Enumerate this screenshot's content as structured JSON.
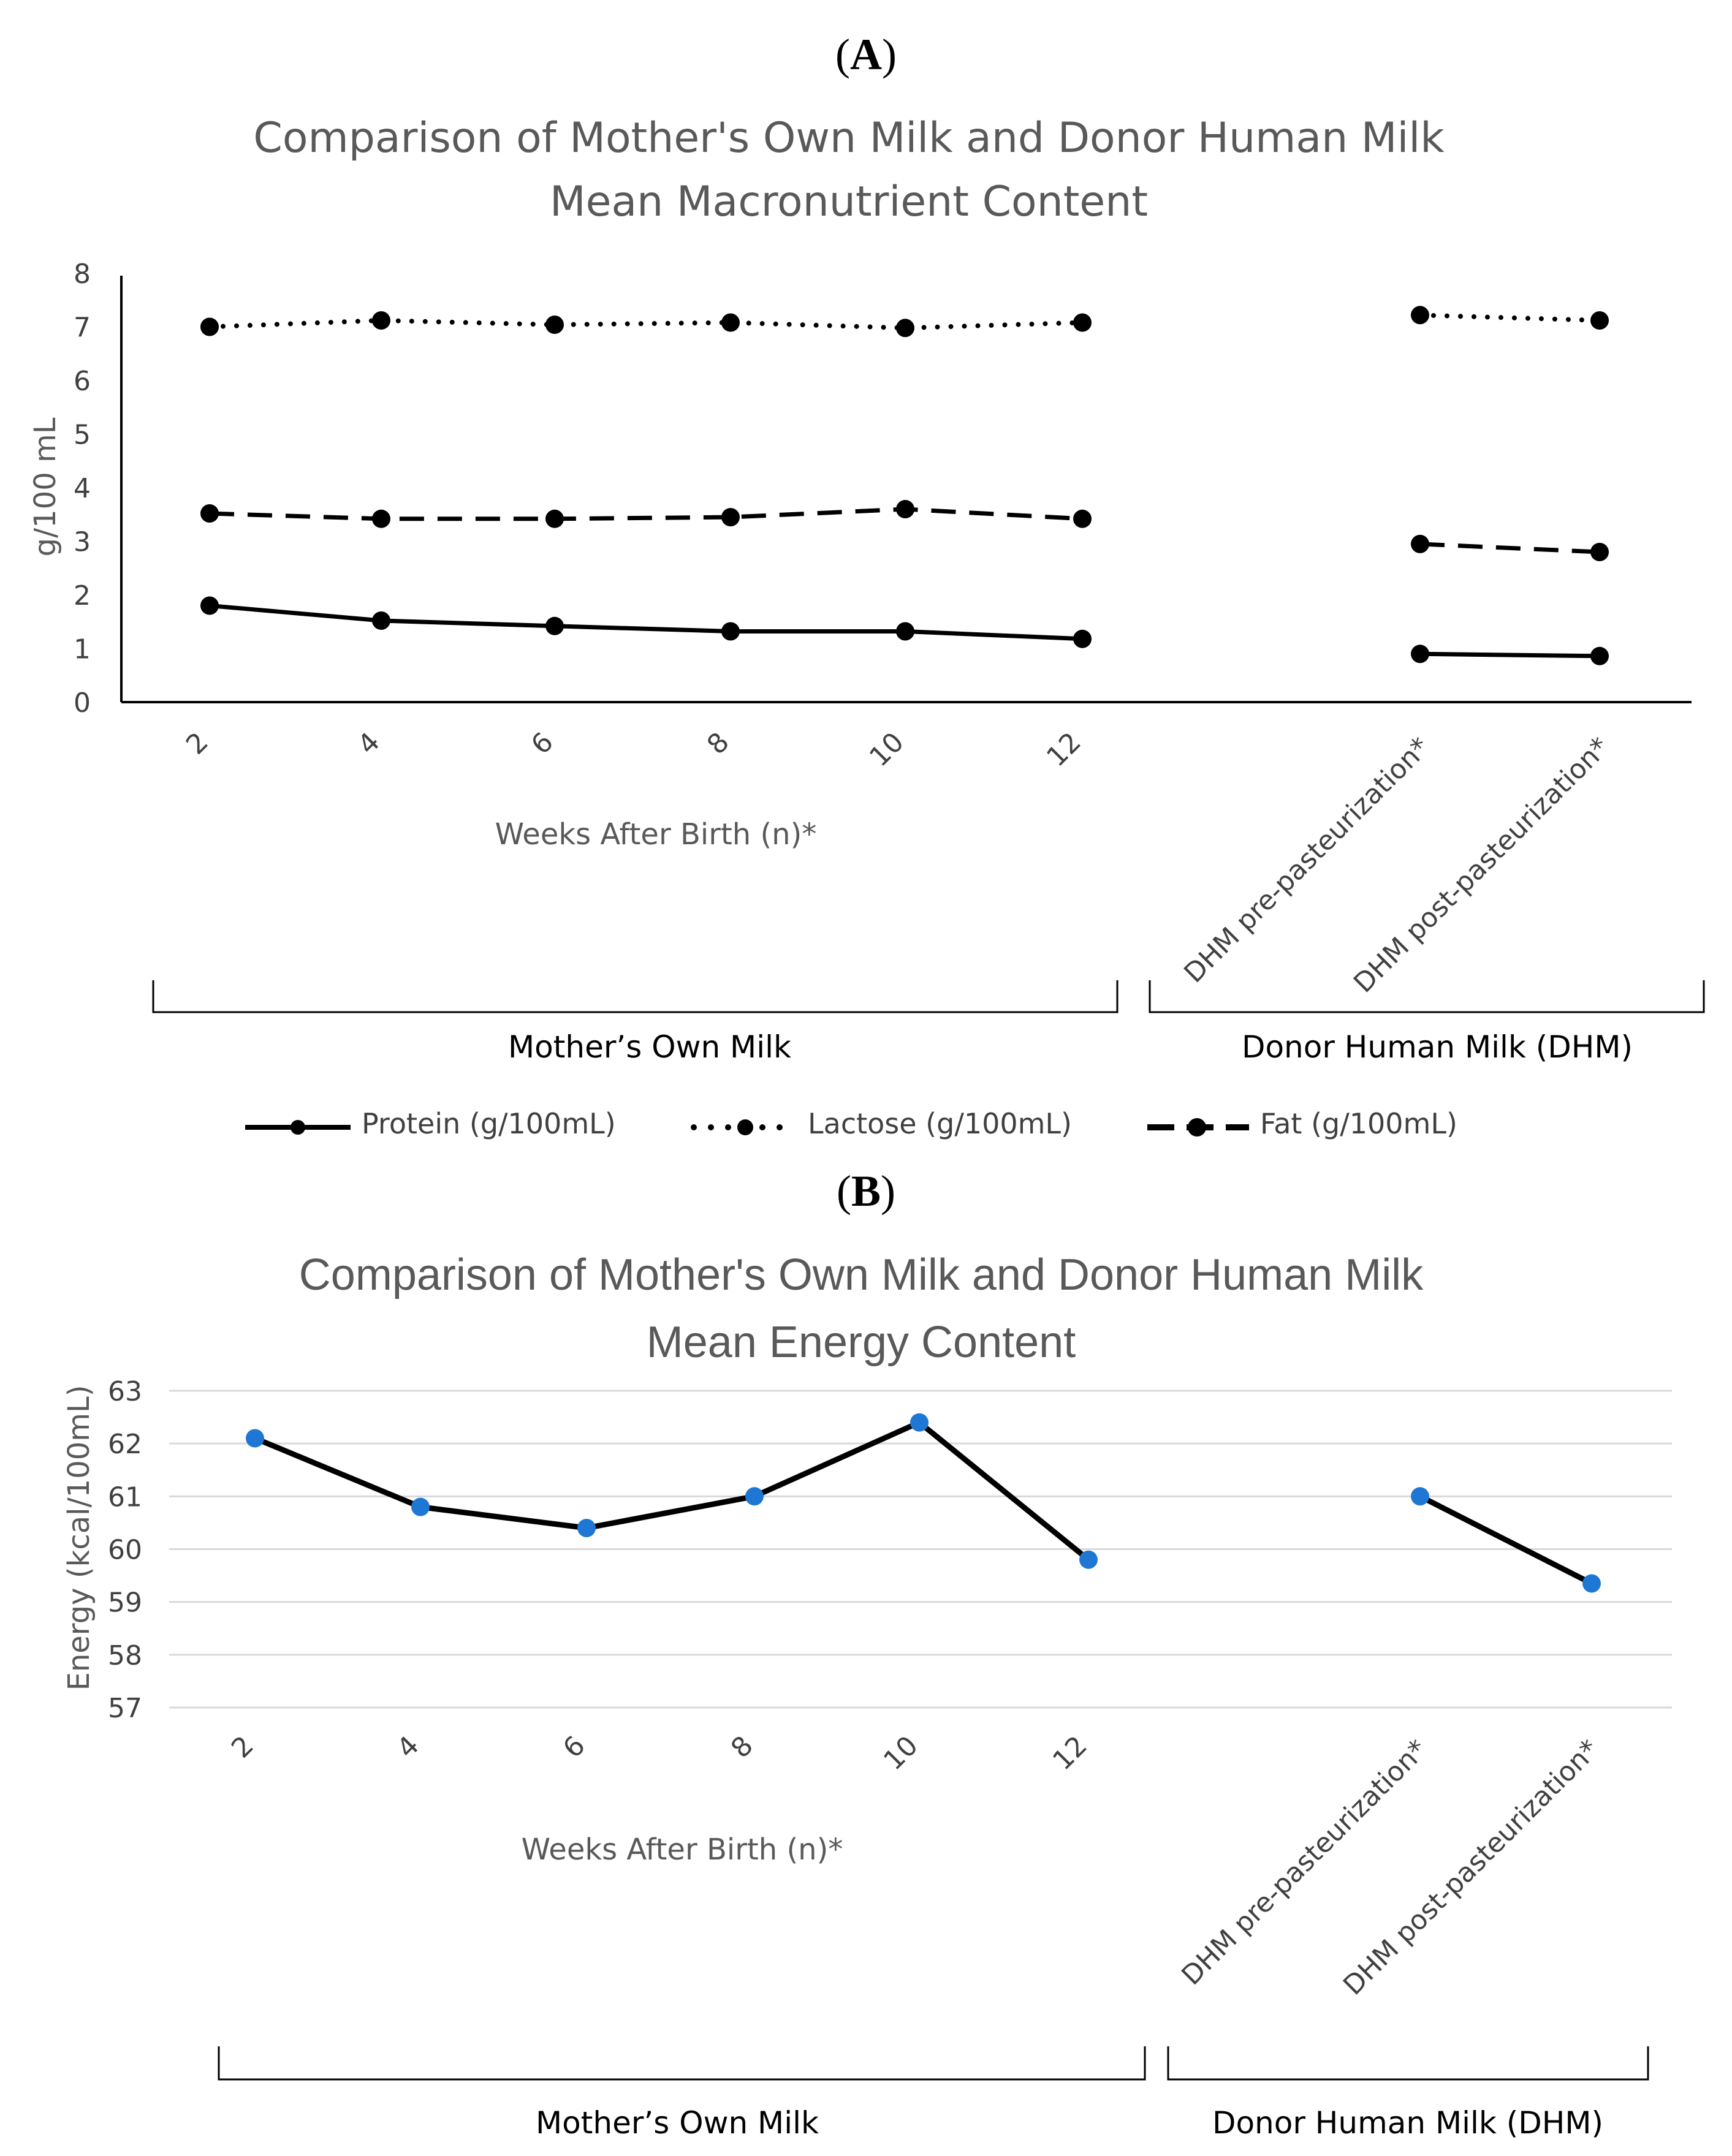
{
  "panels": {
    "a_label": "A",
    "b_label": "B"
  },
  "chart_data": [
    {
      "type": "line",
      "title": "Comparison of Mother's Own Milk and Donor Human Milk Mean Macronutrient Content",
      "title_lines": [
        "Comparison of Mother's Own Milk and Donor Human Milk",
        "Mean Macronutrient Content"
      ],
      "ylabel": "g/100 mL",
      "xlabel": "Weeks After Birth (n)*",
      "ylim": [
        0,
        8
      ],
      "yticks": [
        "0",
        "1",
        "2",
        "3",
        "4",
        "5",
        "6",
        "7",
        "8"
      ],
      "categories": [
        "2",
        "4",
        "6",
        "8",
        "10",
        "12",
        "DHM pre-pasteurization*",
        "DHM post-pasteurization*"
      ],
      "groups": [
        {
          "label": "Mother’s Own Milk",
          "categories": [
            "2",
            "4",
            "6",
            "8",
            "10",
            "12"
          ]
        },
        {
          "label": "Donor Human Milk (DHM)",
          "categories": [
            "DHM pre-pasteurization*",
            "DHM post-pasteurization*"
          ]
        }
      ],
      "series": [
        {
          "name": "Protein (g/100mL)",
          "style": "solid",
          "values": [
            1.8,
            1.52,
            1.42,
            1.32,
            1.32,
            1.18,
            0.9,
            0.86
          ]
        },
        {
          "name": "Lactose (g/100mL)",
          "style": "dotted",
          "values": [
            7.0,
            7.12,
            7.04,
            7.08,
            6.98,
            7.08,
            7.22,
            7.12
          ]
        },
        {
          "name": "Fat (g/100mL)",
          "style": "dashed",
          "values": [
            3.52,
            3.42,
            3.42,
            3.45,
            3.6,
            3.42,
            2.95,
            2.8
          ]
        }
      ],
      "grid": false,
      "legend": "bottom",
      "colors": {
        "line": "#000000",
        "text": "#595959"
      }
    },
    {
      "type": "line",
      "title": "Comparison of Mother's Own Milk and Donor Human Milk Mean Energy Content",
      "title_lines": [
        "Comparison of Mother's Own Milk and Donor Human Milk",
        "Mean Energy Content"
      ],
      "ylabel": "Energy (kcal/100mL)",
      "xlabel": "Weeks After Birth (n)*",
      "ylim": [
        57,
        63
      ],
      "yticks": [
        "57",
        "58",
        "59",
        "60",
        "61",
        "62",
        "63"
      ],
      "categories": [
        "2",
        "4",
        "6",
        "8",
        "10",
        "12",
        "DHM pre-pasteurization*",
        "DHM post-pasteurization*"
      ],
      "groups": [
        {
          "label": "Mother’s Own Milk",
          "categories": [
            "2",
            "4",
            "6",
            "8",
            "10",
            "12"
          ]
        },
        {
          "label": "Donor Human Milk (DHM)",
          "categories": [
            "DHM pre-pasteurization*",
            "DHM post-pasteurization*"
          ]
        }
      ],
      "series": [
        {
          "name": "Energy (kcal/100mL)",
          "values": [
            62.1,
            60.8,
            60.4,
            61.0,
            62.4,
            59.8,
            61.0,
            59.35
          ]
        }
      ],
      "grid": true,
      "legend": "none",
      "colors": {
        "line": "#000000",
        "marker": "#1f77d4",
        "grid": "#d9d9d9",
        "text": "#595959"
      }
    }
  ]
}
